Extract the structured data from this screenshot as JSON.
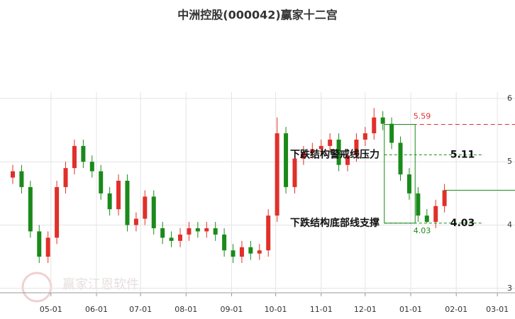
{
  "chart_data": {
    "type": "candlestick",
    "title": "中洲控股(000042)赢家十二宫",
    "watermark": "赢家江恩软件",
    "x": [
      4,
      10,
      16,
      22,
      28,
      34,
      40,
      46,
      52,
      58,
      64,
      70,
      76,
      82,
      88,
      94,
      100,
      106,
      112,
      118,
      124,
      130,
      136,
      142,
      148,
      154,
      160,
      166,
      172,
      178,
      184,
      190,
      196,
      202,
      208,
      214,
      220,
      226,
      232,
      238,
      244,
      250,
      256,
      262,
      268,
      274,
      280,
      286,
      292,
      298
    ],
    "open": [
      4.75,
      4.85,
      4.6,
      3.9,
      3.5,
      3.8,
      4.6,
      4.9,
      5.25,
      5.0,
      4.85,
      4.5,
      4.25,
      4.7,
      4.0,
      4.1,
      4.45,
      3.95,
      3.8,
      3.75,
      3.85,
      3.95,
      3.9,
      3.95,
      3.85,
      3.6,
      3.5,
      3.65,
      3.55,
      3.6,
      4.15,
      5.45,
      4.6,
      5.05,
      5.15,
      5.2,
      5.25,
      5.35,
      4.95,
      5.1,
      5.35,
      5.45,
      5.7,
      5.6,
      5.3,
      4.8,
      4.5,
      4.15,
      4.05,
      4.3
    ],
    "high": [
      4.95,
      4.95,
      4.7,
      4.0,
      3.9,
      4.7,
      5.0,
      5.35,
      5.35,
      5.1,
      4.95,
      4.6,
      4.8,
      4.8,
      4.2,
      4.55,
      4.55,
      4.05,
      3.9,
      3.95,
      4.05,
      4.05,
      4.05,
      4.05,
      3.95,
      3.7,
      3.75,
      3.75,
      3.7,
      4.25,
      5.7,
      5.55,
      5.15,
      5.25,
      5.3,
      5.35,
      5.45,
      5.45,
      5.2,
      5.45,
      5.55,
      5.85,
      5.8,
      5.7,
      5.4,
      4.9,
      4.6,
      4.25,
      4.4,
      4.65
    ],
    "low": [
      4.65,
      4.5,
      3.8,
      3.4,
      3.4,
      3.7,
      4.5,
      4.8,
      4.9,
      4.75,
      4.4,
      4.15,
      4.15,
      3.9,
      3.9,
      4.0,
      3.85,
      3.7,
      3.65,
      3.65,
      3.75,
      3.8,
      3.8,
      3.75,
      3.5,
      3.4,
      3.4,
      3.45,
      3.45,
      3.5,
      4.05,
      4.5,
      4.5,
      4.95,
      5.05,
      5.1,
      5.15,
      4.85,
      4.85,
      5.0,
      5.25,
      5.35,
      5.5,
      5.2,
      4.7,
      4.4,
      4.05,
      4.03,
      3.95,
      4.2
    ],
    "close": [
      4.85,
      4.6,
      3.9,
      3.5,
      3.8,
      4.6,
      4.9,
      5.25,
      5.0,
      4.85,
      4.5,
      4.25,
      4.7,
      4.0,
      4.1,
      4.45,
      3.95,
      3.8,
      3.75,
      3.85,
      3.95,
      3.9,
      3.95,
      3.85,
      3.6,
      3.5,
      3.65,
      3.55,
      3.6,
      4.15,
      5.45,
      4.6,
      5.05,
      5.15,
      5.2,
      5.25,
      5.35,
      4.95,
      5.1,
      5.35,
      5.45,
      5.7,
      5.6,
      5.3,
      4.8,
      4.5,
      4.15,
      4.05,
      4.3,
      4.55
    ],
    "up_color": "#e0302a",
    "down_color": "#1a8a1a",
    "xlim": [
      4,
      346
    ],
    "ylim": [
      2.93,
      6.1
    ],
    "xticks": [
      {
        "value": 30,
        "label": "05-01"
      },
      {
        "value": 61,
        "label": "06-01"
      },
      {
        "value": 91,
        "label": "07-01"
      },
      {
        "value": 122,
        "label": "08-01"
      },
      {
        "value": 153,
        "label": "09-01"
      },
      {
        "value": 183,
        "label": "10-01"
      },
      {
        "value": 214,
        "label": "11-01"
      },
      {
        "value": 244,
        "label": "12-01"
      },
      {
        "value": 275,
        "label": "01-01"
      },
      {
        "value": 306,
        "label": "02-01"
      },
      {
        "value": 334,
        "label": "03-01"
      }
    ],
    "yticks": [
      3,
      4,
      5,
      6
    ],
    "grid": true,
    "high_line": {
      "value": 5.59,
      "color": "#e03030"
    },
    "box": {
      "x0": 257,
      "x1": 278,
      "top": 5.59,
      "bottom": 4.03,
      "color": "#1a8a1a"
    },
    "levels": [
      {
        "text": "下跌结构警戒线压力",
        "value": 5.11
      },
      {
        "text": "下跌结构底部线支撑",
        "value": 4.03
      }
    ],
    "current_line": {
      "x0": 298,
      "value": 4.55
    }
  }
}
